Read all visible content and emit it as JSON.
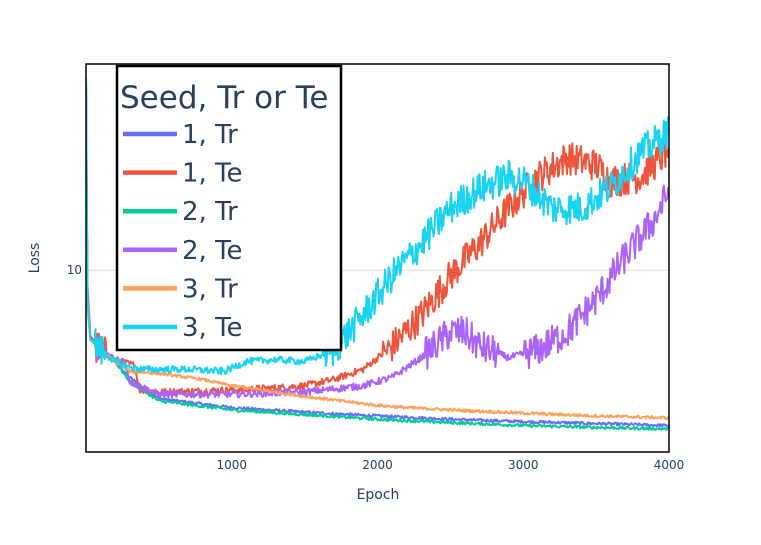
{
  "chart_data": {
    "type": "line",
    "title": "",
    "xlabel": "Epoch",
    "ylabel": "Loss",
    "xlim": [
      0,
      4000
    ],
    "ylim": [
      5.2,
      21
    ],
    "y_scale": "log",
    "grid": "y-only",
    "x_ticks": [
      {
        "value": 1000,
        "label": "1000"
      },
      {
        "value": 2000,
        "label": "2000"
      },
      {
        "value": 3000,
        "label": "3000"
      },
      {
        "value": 4000,
        "label": "4000"
      }
    ],
    "y_ticks": [
      {
        "value": 10,
        "label": "10"
      }
    ],
    "legend": {
      "title": "Seed, Tr or Te",
      "placement": "top-left inside plot"
    },
    "series": [
      {
        "name": "1, Tr",
        "color": "#636efa",
        "points": [
          [
            0,
            20
          ],
          [
            10,
            9.0
          ],
          [
            30,
            7.8
          ],
          [
            100,
            7.5
          ],
          [
            200,
            7.2
          ],
          [
            300,
            6.8
          ],
          [
            500,
            6.3
          ],
          [
            1000,
            6.1
          ],
          [
            1500,
            6.0
          ],
          [
            2000,
            5.92
          ],
          [
            2500,
            5.85
          ],
          [
            3000,
            5.8
          ],
          [
            3500,
            5.76
          ],
          [
            4000,
            5.72
          ]
        ]
      },
      {
        "name": "1, Te",
        "color": "#ef553b",
        "points": [
          [
            0,
            20
          ],
          [
            10,
            9.5
          ],
          [
            30,
            7.9
          ],
          [
            100,
            7.5
          ],
          [
            200,
            7.25
          ],
          [
            330,
            7.1
          ],
          [
            370,
            6.5
          ],
          [
            500,
            6.45
          ],
          [
            1000,
            6.5
          ],
          [
            1300,
            6.55
          ],
          [
            1500,
            6.6
          ],
          [
            1700,
            6.75
          ],
          [
            1900,
            7.0
          ],
          [
            2100,
            7.6
          ],
          [
            2300,
            8.5
          ],
          [
            2500,
            9.8
          ],
          [
            2700,
            11.0
          ],
          [
            2900,
            12.5
          ],
          [
            3100,
            14.0
          ],
          [
            3300,
            15.0
          ],
          [
            3500,
            14.6
          ],
          [
            3600,
            13.8
          ],
          [
            3800,
            14.0
          ],
          [
            3950,
            15.0
          ],
          [
            4000,
            15.5
          ]
        ]
      },
      {
        "name": "2, Tr",
        "color": "#00cc96",
        "points": [
          [
            0,
            20
          ],
          [
            10,
            8.9
          ],
          [
            30,
            7.8
          ],
          [
            100,
            7.5
          ],
          [
            200,
            7.2
          ],
          [
            300,
            6.7
          ],
          [
            500,
            6.25
          ],
          [
            1000,
            6.05
          ],
          [
            1500,
            5.95
          ],
          [
            2000,
            5.85
          ],
          [
            2500,
            5.78
          ],
          [
            3000,
            5.72
          ],
          [
            3500,
            5.68
          ],
          [
            4000,
            5.65
          ]
        ]
      },
      {
        "name": "2, Te",
        "color": "#ab63fa",
        "points": [
          [
            0,
            20
          ],
          [
            10,
            9.3
          ],
          [
            30,
            7.8
          ],
          [
            100,
            7.5
          ],
          [
            200,
            7.25
          ],
          [
            270,
            7.2
          ],
          [
            300,
            6.7
          ],
          [
            500,
            6.4
          ],
          [
            1000,
            6.4
          ],
          [
            1500,
            6.45
          ],
          [
            1900,
            6.6
          ],
          [
            2100,
            6.8
          ],
          [
            2300,
            7.3
          ],
          [
            2500,
            8.0
          ],
          [
            2600,
            8.0
          ],
          [
            2700,
            7.6
          ],
          [
            2900,
            7.3
          ],
          [
            3100,
            7.5
          ],
          [
            3300,
            8.0
          ],
          [
            3500,
            9.0
          ],
          [
            3700,
            10.5
          ],
          [
            3900,
            12.0
          ],
          [
            4000,
            13.3
          ]
        ]
      },
      {
        "name": "3, Tr",
        "color": "#ffa15a",
        "points": [
          [
            0,
            20
          ],
          [
            10,
            8.7
          ],
          [
            30,
            7.8
          ],
          [
            100,
            7.5
          ],
          [
            200,
            7.2
          ],
          [
            300,
            6.95
          ],
          [
            500,
            6.9
          ],
          [
            800,
            6.75
          ],
          [
            1000,
            6.6
          ],
          [
            1200,
            6.5
          ],
          [
            1500,
            6.35
          ],
          [
            2000,
            6.15
          ],
          [
            2200,
            6.1
          ],
          [
            2500,
            6.05
          ],
          [
            3000,
            5.98
          ],
          [
            3500,
            5.92
          ],
          [
            4000,
            5.88
          ]
        ]
      },
      {
        "name": "3, Te",
        "color": "#19d3f3",
        "points": [
          [
            0,
            20
          ],
          [
            10,
            9.0
          ],
          [
            30,
            7.8
          ],
          [
            100,
            7.5
          ],
          [
            200,
            7.2
          ],
          [
            300,
            7.05
          ],
          [
            400,
            7.0
          ],
          [
            700,
            7.0
          ],
          [
            950,
            6.95
          ],
          [
            1100,
            7.2
          ],
          [
            1300,
            7.25
          ],
          [
            1500,
            7.2
          ],
          [
            1700,
            7.5
          ],
          [
            1900,
            8.5
          ],
          [
            2100,
            9.8
          ],
          [
            2300,
            11.0
          ],
          [
            2500,
            12.5
          ],
          [
            2700,
            13.4
          ],
          [
            2900,
            14.0
          ],
          [
            3000,
            13.8
          ],
          [
            3200,
            12.5
          ],
          [
            3400,
            12.5
          ],
          [
            3600,
            13.5
          ],
          [
            3800,
            15.2
          ],
          [
            4000,
            16.5
          ]
        ]
      }
    ]
  }
}
